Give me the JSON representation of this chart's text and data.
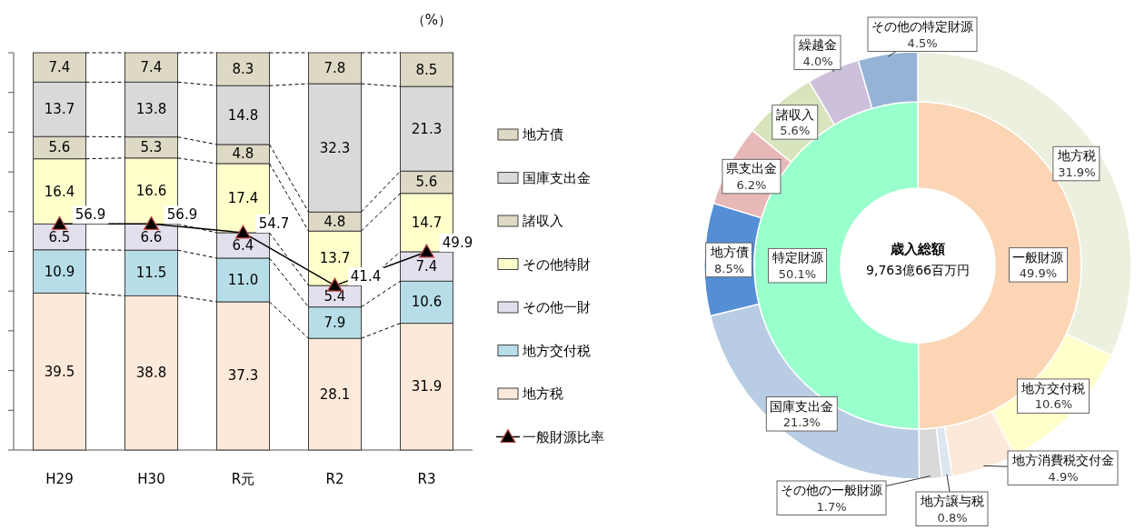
{
  "chart_data": [
    {
      "type": "bar",
      "stacked": true,
      "categories": [
        "H29",
        "H30",
        "R元",
        "R2",
        "R3"
      ],
      "series": [
        {
          "name": "地方税",
          "color": "#fde9d9",
          "values": [
            39.5,
            38.8,
            37.3,
            28.1,
            31.9
          ],
          "value_labels": [
            "39.5",
            "38.8",
            "37.3",
            "28.1",
            "31.9"
          ]
        },
        {
          "name": "地方交付税",
          "color": "#b7dee8",
          "values": [
            10.9,
            11.5,
            11.0,
            7.9,
            10.6
          ],
          "value_labels": [
            "10.9",
            "11.5",
            "11.0",
            "7.9",
            "10.6"
          ]
        },
        {
          "name": "その他一財",
          "color": "#e4dfec",
          "values": [
            6.5,
            6.6,
            6.4,
            5.4,
            7.4
          ],
          "value_labels": [
            "6.5",
            "6.6",
            "6.4",
            "5.4",
            "7.4"
          ]
        },
        {
          "name": "その他特財",
          "color": "#ffffcc",
          "values": [
            16.4,
            16.6,
            17.4,
            13.7,
            14.7
          ],
          "value_labels": [
            "16.4",
            "16.6",
            "17.4",
            "13.7",
            "14.7"
          ]
        },
        {
          "name": "諸収入",
          "color": "#ddd9c4",
          "values": [
            5.6,
            5.3,
            4.8,
            4.8,
            5.6
          ],
          "value_labels": [
            "5.6",
            "5.3",
            "4.8",
            "4.8",
            "5.6"
          ]
        },
        {
          "name": "国庫支出金",
          "color": "#d9d9d9",
          "values": [
            13.7,
            13.8,
            14.8,
            32.3,
            21.3
          ],
          "value_labels": [
            "13.7",
            "13.8",
            "14.8",
            "32.3",
            "21.3"
          ]
        },
        {
          "name": "地方債",
          "color": "#ddd9c4",
          "values": [
            7.4,
            7.4,
            8.3,
            7.8,
            8.5
          ],
          "value_labels": [
            "7.4",
            "7.4",
            "8.3",
            "7.8",
            "8.5"
          ]
        },
        {
          "name": "一般財源比率",
          "type": "line",
          "color": "#000000",
          "marker": "triangle",
          "values": [
            56.9,
            56.9,
            54.7,
            41.4,
            49.9
          ],
          "value_labels": [
            "56.9",
            "56.9",
            "54.7",
            "41.4",
            "49.9"
          ]
        }
      ],
      "ylim": [
        0,
        100
      ],
      "yticks": [
        {
          "value": 0,
          "label": null
        },
        {
          "value": 10,
          "label": null
        },
        {
          "value": 20,
          "label": null
        },
        {
          "value": 30,
          "label": null
        },
        {
          "value": 40,
          "label": null
        },
        {
          "value": 50,
          "label": null
        },
        {
          "value": 60,
          "label": null
        },
        {
          "value": 70,
          "label": null
        },
        {
          "value": 80,
          "label": null
        },
        {
          "value": 90,
          "label": null
        },
        {
          "value": 100,
          "label": null
        }
      ],
      "tick_labels": "x",
      "legend": "right",
      "annotations": [
        "（%）"
      ]
    },
    {
      "type": "donut",
      "title": "歳入総額",
      "subtitle": "9,763億66百万円",
      "categories": [
        "一般財源",
        "特定財源"
      ],
      "values": [
        49.9,
        50.1
      ],
      "colors": [
        "#fcd5b4",
        "#99ffcc"
      ],
      "value_labels": [
        "49.9%",
        "50.1%"
      ]
    },
    {
      "type": "donut",
      "categories": [
        "地方税",
        "地方交付税",
        "地方消費税交付金",
        "地方譲与税",
        "その他の一般財源",
        "国庫支出金",
        "地方債",
        "県支出金",
        "諸収入",
        "繰越金",
        "その他の特定財源"
      ],
      "values": [
        31.9,
        10.6,
        4.9,
        0.8,
        1.7,
        21.3,
        8.5,
        6.2,
        5.6,
        4.0,
        4.5
      ],
      "colors": [
        "#ebf1de",
        "#ffffcc",
        "#fde9d9",
        "#dce6f1",
        "#d9d9d9",
        "#b8cce4",
        "#558ed5",
        "#e6b8b7",
        "#d7e4bc",
        "#ccc0da",
        "#95b3d7"
      ],
      "value_labels": [
        "31.9%",
        "10.6%",
        "4.9%",
        "0.8%",
        "1.7%",
        "21.3%",
        "8.5%",
        "6.2%",
        "5.6%",
        "4.0%",
        "4.5%"
      ]
    }
  ]
}
